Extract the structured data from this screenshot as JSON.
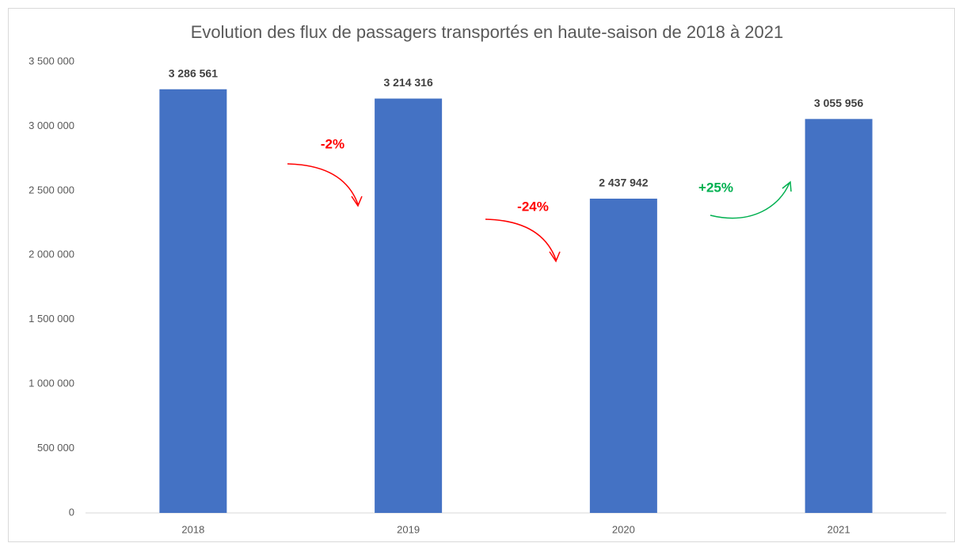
{
  "chart_data": {
    "type": "bar",
    "title": "Evolution des flux de passagers transportés en haute-saison de 2018 à 2021",
    "categories": [
      "2018",
      "2019",
      "2020",
      "2021"
    ],
    "values": [
      3286561,
      3214316,
      2437942,
      3055956
    ],
    "value_labels": [
      "3 286 561",
      "3 214 316",
      "2 437 942",
      "3 055 956"
    ],
    "color": "#4472c4",
    "ylim": [
      0,
      3500000
    ],
    "yticks": [
      0,
      {
        "value": 500000,
        "label": "500 000"
      },
      {
        "value": 1000000,
        "label": "1 000 000"
      },
      {
        "value": 1500000,
        "label": "1 500 000"
      },
      {
        "value": 2000000,
        "label": "2 000 000"
      },
      {
        "value": 2500000,
        "label": "2 500 000"
      },
      {
        "value": 3000000,
        "label": "3 000 000"
      },
      {
        "value": 3500000,
        "label": "3 500 000"
      }
    ],
    "grid": false,
    "annotations": [
      {
        "text": "-2%",
        "color": "#ff0000"
      },
      {
        "text": "-24%",
        "color": "#ff0000"
      },
      {
        "text": "+25%",
        "color": "#00b050"
      }
    ]
  }
}
